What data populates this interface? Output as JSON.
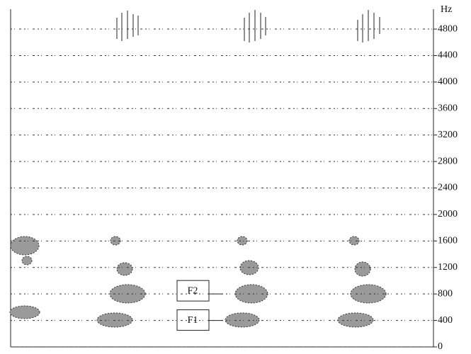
{
  "chart_data": {
    "type": "spectrogram",
    "y_label": "Hz",
    "ylim": [
      0,
      5100
    ],
    "yticks": [
      0,
      400,
      800,
      1200,
      1600,
      2000,
      2400,
      2800,
      3200,
      3600,
      4000,
      4400,
      4800
    ],
    "grid": true,
    "annotations": [
      {
        "text": "F2",
        "y": 800
      },
      {
        "text": "F1",
        "y": 400
      }
    ]
  }
}
